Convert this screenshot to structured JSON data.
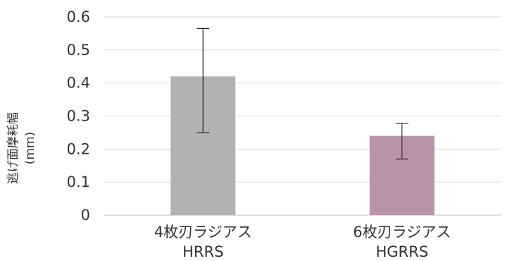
{
  "chart_data": {
    "type": "bar",
    "title": "",
    "ylabel": "逃げ面摩耗幅",
    "ylabel_unit": "(mm)",
    "xlabel": "",
    "ylim": [
      0,
      0.6
    ],
    "yticks": [
      "0",
      "0.1",
      "0.2",
      "0.3",
      "0.4",
      "0.5",
      "0.6"
    ],
    "grid": true,
    "categories": [
      {
        "line1": "4枚刃ラジアス",
        "line2": "HRRS"
      },
      {
        "line1": "6枚刃ラジアス",
        "line2": "HGRRS"
      }
    ],
    "values": [
      0.42,
      0.24
    ],
    "error_bars": [
      {
        "low": 0.25,
        "high": 0.565
      },
      {
        "low": 0.17,
        "high": 0.278
      }
    ],
    "colors": [
      "#b1b2b4",
      "#b993ab"
    ]
  }
}
